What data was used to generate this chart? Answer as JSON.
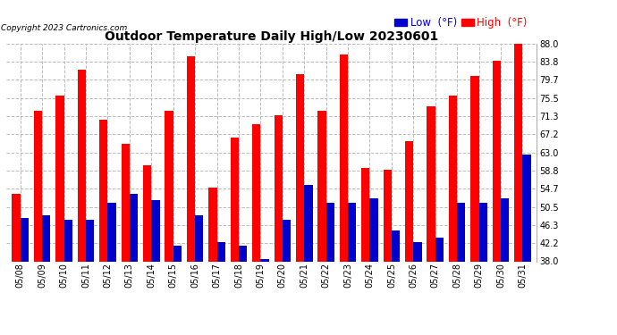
{
  "title": "Outdoor Temperature Daily High/Low 20230601",
  "copyright": "Copyright 2023 Cartronics.com",
  "dates": [
    "05/08",
    "05/09",
    "05/10",
    "05/11",
    "05/12",
    "05/13",
    "05/14",
    "05/15",
    "05/16",
    "05/17",
    "05/18",
    "05/19",
    "05/20",
    "05/21",
    "05/22",
    "05/23",
    "05/24",
    "05/25",
    "05/26",
    "05/27",
    "05/28",
    "05/29",
    "05/30",
    "05/31"
  ],
  "highs": [
    53.5,
    72.5,
    76.0,
    82.0,
    70.5,
    65.0,
    60.0,
    72.5,
    85.0,
    55.0,
    66.5,
    69.5,
    71.5,
    81.0,
    72.5,
    85.5,
    59.5,
    59.0,
    65.5,
    73.5,
    76.0,
    80.5,
    84.0,
    88.0
  ],
  "lows": [
    48.0,
    48.5,
    47.5,
    47.5,
    51.5,
    53.5,
    52.0,
    41.5,
    48.5,
    42.5,
    41.5,
    38.5,
    47.5,
    55.5,
    51.5,
    51.5,
    52.5,
    45.0,
    42.5,
    43.5,
    51.5,
    51.5,
    52.5,
    62.5
  ],
  "high_color": "#ff0000",
  "low_color": "#0000cc",
  "ylim": [
    38.0,
    88.0
  ],
  "yticks": [
    38.0,
    42.2,
    46.3,
    50.5,
    54.7,
    58.8,
    63.0,
    67.2,
    71.3,
    75.5,
    79.7,
    83.8,
    88.0
  ],
  "bg_color": "#ffffff",
  "grid_color": "#bbbbbb",
  "bar_width": 0.38,
  "title_fontsize": 10,
  "tick_fontsize": 7,
  "legend_fontsize": 8.5
}
